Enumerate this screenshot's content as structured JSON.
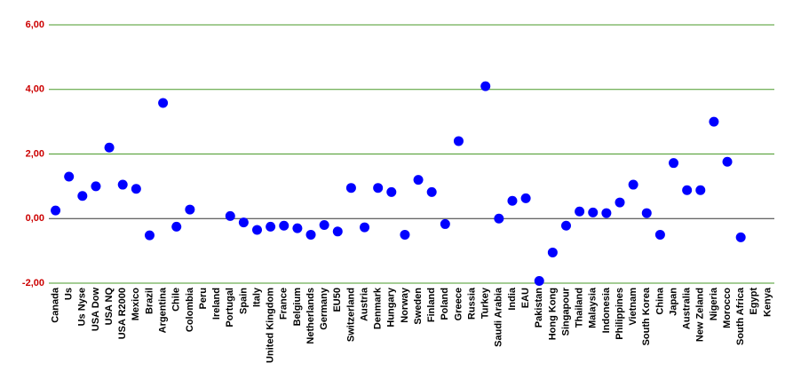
{
  "chart_data": {
    "type": "scatter",
    "categories": [
      "Canada",
      "Us",
      "Us Nyse",
      "USA Dow",
      "USA NQ",
      "USA R2000",
      "Mexico",
      "Brazil",
      "Argentina",
      "Chile",
      "Colombia",
      "Peru",
      "Ireland",
      "Portugal",
      "Spain",
      "Italy",
      "United Kingdom",
      "France",
      "Belgium",
      "Netherlands",
      "Germany",
      "EU50",
      "Switzerland",
      "Austria",
      "Denmark",
      "Hungary",
      "Norway",
      "Sweden",
      "Finland",
      "Poland",
      "Greece",
      "Russia",
      "Turkey",
      "Saudi Arabia",
      "India",
      "EAU",
      "Pakistan",
      "Hong Kong",
      "Singapour",
      "Thailand",
      "Malaysia",
      "Indonesia",
      "Philippines",
      "Vietnam",
      "South Korea",
      "China",
      "Japan",
      "Australia",
      "New Zeland",
      "Nigeria",
      "Morocco",
      "South Africa",
      "Egypt",
      "Kenya"
    ],
    "values": [
      0.25,
      1.3,
      0.7,
      1.0,
      2.2,
      1.05,
      0.92,
      -0.52,
      3.58,
      -0.25,
      0.28,
      null,
      null,
      0.08,
      -0.12,
      -0.35,
      -0.25,
      -0.22,
      -0.3,
      -0.5,
      -0.2,
      -0.4,
      0.95,
      -0.27,
      0.95,
      0.82,
      -0.5,
      1.2,
      0.82,
      -0.17,
      2.4,
      null,
      4.1,
      0.0,
      0.55,
      0.63,
      -1.93,
      -1.05,
      -0.22,
      0.22,
      0.19,
      0.17,
      0.5,
      1.05,
      0.17,
      -0.5,
      1.72,
      0.88,
      0.88,
      3.0,
      1.76,
      -0.58,
      null,
      null
    ],
    "color": "#0000ff",
    "ylim": [
      -2,
      6
    ],
    "yticks": [
      {
        "value": -2,
        "label": "-2,00"
      },
      {
        "value": 0,
        "label": "0,00"
      },
      {
        "value": 2,
        "label": "2,00"
      },
      {
        "value": 4,
        "label": "4,00"
      },
      {
        "value": 6,
        "label": "6,00"
      }
    ],
    "grid": true
  }
}
